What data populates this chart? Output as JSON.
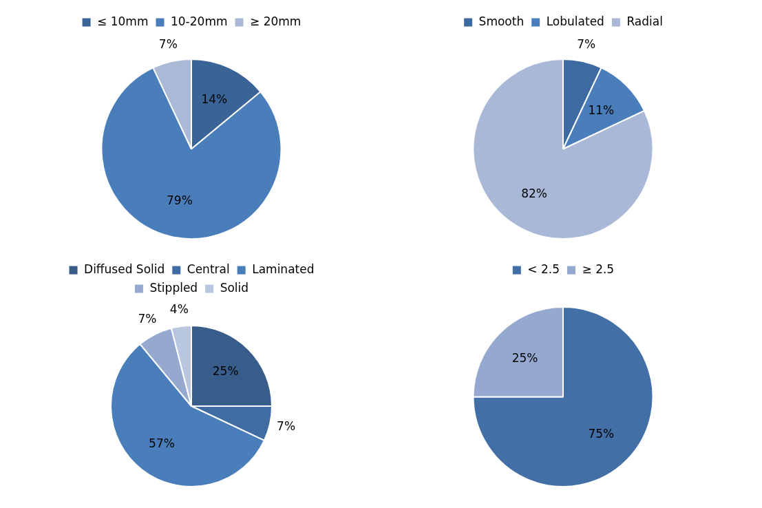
{
  "chart_data": [
    {
      "type": "pie",
      "categories": [
        "≤ 10mm",
        "10-20mm",
        "≥ 20mm"
      ],
      "values": [
        14,
        79,
        7
      ],
      "value_labels": [
        "14%",
        "79%",
        "7%"
      ],
      "colors": [
        "#3a6496",
        "#4a7ebb",
        "#a9b9d6"
      ],
      "legend": "top"
    },
    {
      "type": "pie",
      "categories": [
        "Smooth",
        "Lobulated",
        "Radial"
      ],
      "values": [
        7,
        11,
        82
      ],
      "value_labels": [
        "7%",
        "11%",
        "82%"
      ],
      "colors": [
        "#3d6aa0",
        "#4a7ebb",
        "#a9b8d6"
      ],
      "legend": "top"
    },
    {
      "type": "pie",
      "categories": [
        "Diffused Solid",
        "Central",
        "Laminated",
        "Stippled",
        "Solid"
      ],
      "values": [
        25,
        7,
        57,
        7,
        4
      ],
      "value_labels": [
        "25%",
        "7%",
        "57%",
        "7%",
        "4%"
      ],
      "colors": [
        "#385d8a",
        "#3f6ca3",
        "#4a7ebb",
        "#95a9cf",
        "#b9c6e0"
      ],
      "legend": "top"
    },
    {
      "type": "pie",
      "categories": [
        "< 2.5",
        "≥ 2.5"
      ],
      "values": [
        75,
        25
      ],
      "value_labels": [
        "75%",
        "25%"
      ],
      "colors": [
        "#416fa6",
        "#95a8d0"
      ],
      "legend": "top"
    }
  ]
}
